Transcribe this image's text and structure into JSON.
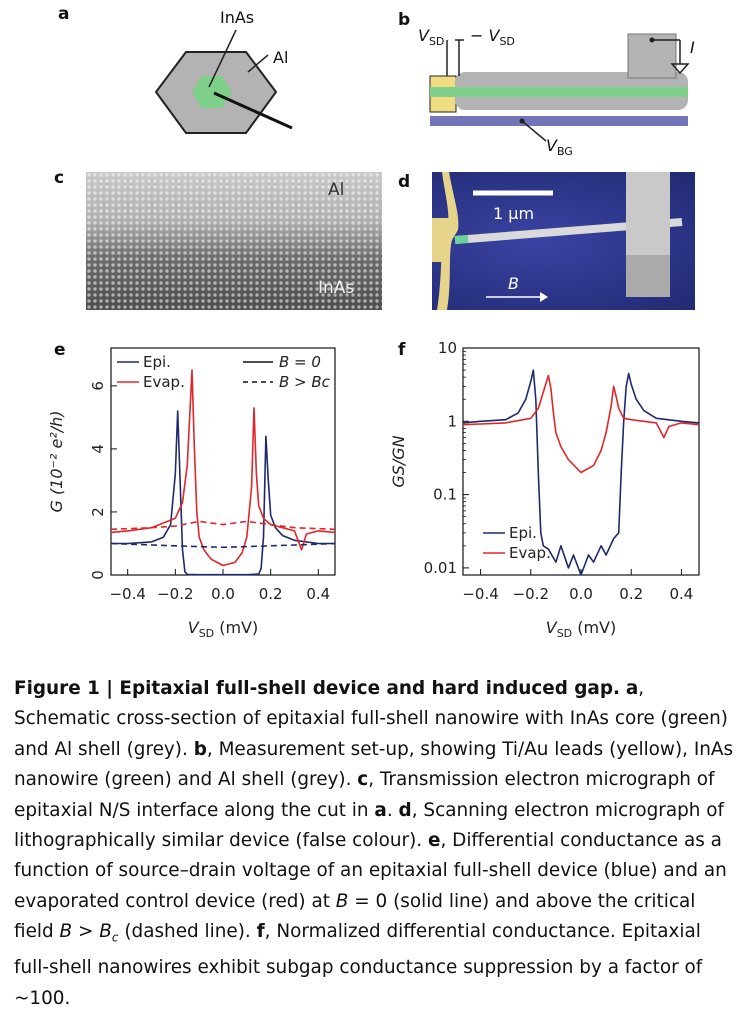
{
  "panels": {
    "a": {
      "letter": "a",
      "label_core": "InAs",
      "label_shell": "Al"
    },
    "b": {
      "letter": "b",
      "vsd_left": "V",
      "vsd_left_sub": "SD",
      "vsd_right": "V",
      "vsd_right_sub": "SD",
      "current": "I",
      "vbg": "V",
      "vbg_sub": "BG"
    },
    "c": {
      "letter": "c",
      "label_top": "Al",
      "label_bottom": "InAs"
    },
    "d": {
      "letter": "d",
      "scale_label": "1 μm",
      "field_label": "B"
    },
    "e": {
      "letter": "e"
    },
    "f": {
      "letter": "f"
    }
  },
  "colors": {
    "epi": "#1f2a6b",
    "evap": "#e0262b",
    "green": "#7ed08a",
    "grey": "#b3b3b3",
    "yellow": "#f0dc82",
    "gate": "#7275b8"
  },
  "chart_data": [
    {
      "id": "e",
      "type": "line",
      "xlabel": "V",
      "xlabel_sub": "SD",
      "xlabel_unit": " (mV)",
      "ylabel": "G (10⁻² e²/h)",
      "xlim": [
        -0.47,
        0.47
      ],
      "ylim": [
        0,
        7.2
      ],
      "xticks": [
        -0.4,
        -0.2,
        0.0,
        0.2,
        0.4
      ],
      "xtick_labels": [
        "−0.4",
        "−0.2",
        "0.0",
        "0.2",
        "0.4"
      ],
      "yticks": [
        0,
        2,
        4,
        6
      ],
      "ytick_labels": [
        "0",
        "2",
        "4",
        "6"
      ],
      "legend_series": [
        "Epi.",
        "Evap."
      ],
      "legend_style": [
        "B = 0",
        "B > Bc"
      ],
      "series": [
        {
          "name": "Epi.",
          "style": "solid",
          "x": [
            -0.47,
            -0.4,
            -0.3,
            -0.25,
            -0.22,
            -0.2,
            -0.19,
            -0.18,
            -0.17,
            -0.16,
            -0.15,
            -0.1,
            0.0,
            0.1,
            0.15,
            0.16,
            0.17,
            0.18,
            0.19,
            0.2,
            0.22,
            0.25,
            0.3,
            0.4,
            0.47
          ],
          "y": [
            1.0,
            1.0,
            1.05,
            1.2,
            1.6,
            3.2,
            5.2,
            3.0,
            0.8,
            0.1,
            0.02,
            0.01,
            0.01,
            0.01,
            0.03,
            0.2,
            1.2,
            4.4,
            3.0,
            1.9,
            1.5,
            1.25,
            1.1,
            1.0,
            1.0
          ]
        },
        {
          "name": "Evap.",
          "style": "solid",
          "x": [
            -0.47,
            -0.4,
            -0.3,
            -0.2,
            -0.17,
            -0.15,
            -0.13,
            -0.12,
            -0.11,
            -0.1,
            -0.08,
            -0.05,
            0.0,
            0.05,
            0.08,
            0.1,
            0.12,
            0.13,
            0.14,
            0.15,
            0.17,
            0.2,
            0.25,
            0.3,
            0.33,
            0.35,
            0.4,
            0.47
          ],
          "y": [
            1.35,
            1.4,
            1.5,
            1.8,
            2.3,
            3.5,
            6.5,
            4.0,
            2.0,
            1.2,
            0.8,
            0.5,
            0.3,
            0.4,
            0.7,
            1.2,
            2.8,
            5.3,
            3.2,
            2.2,
            1.8,
            1.6,
            1.5,
            1.4,
            0.8,
            1.3,
            1.4,
            1.35
          ]
        },
        {
          "name": "Epi.",
          "style": "dashed",
          "x": [
            -0.47,
            -0.3,
            -0.1,
            0.0,
            0.1,
            0.3,
            0.47
          ],
          "y": [
            1.0,
            0.95,
            0.9,
            0.88,
            0.9,
            0.95,
            1.0
          ]
        },
        {
          "name": "Evap.",
          "style": "dashed",
          "x": [
            -0.47,
            -0.3,
            -0.2,
            -0.1,
            0.0,
            0.1,
            0.2,
            0.3,
            0.47
          ],
          "y": [
            1.45,
            1.5,
            1.55,
            1.7,
            1.6,
            1.7,
            1.6,
            1.5,
            1.45
          ]
        }
      ]
    },
    {
      "id": "f",
      "type": "line",
      "log_y": true,
      "xlabel": "V",
      "xlabel_sub": "SD",
      "xlabel_unit": " (mV)",
      "ylabel": "GS/GN",
      "xlim": [
        -0.47,
        0.47
      ],
      "ylim": [
        0.008,
        10
      ],
      "xticks": [
        -0.4,
        -0.2,
        0.0,
        0.2,
        0.4
      ],
      "xtick_labels": [
        "−0.4",
        "−0.2",
        "0.0",
        "0.2",
        "0.4"
      ],
      "yticks": [
        0.01,
        0.1,
        1,
        10
      ],
      "ytick_labels": [
        "0.01",
        "0.1",
        "1",
        "10"
      ],
      "legend_series": [
        "Epi.",
        "Evap."
      ],
      "series": [
        {
          "name": "Epi.",
          "x": [
            -0.47,
            -0.4,
            -0.3,
            -0.25,
            -0.22,
            -0.2,
            -0.19,
            -0.18,
            -0.17,
            -0.16,
            -0.15,
            -0.13,
            -0.1,
            -0.08,
            -0.05,
            -0.03,
            0.0,
            0.03,
            0.05,
            0.08,
            0.1,
            0.13,
            0.15,
            0.16,
            0.17,
            0.18,
            0.19,
            0.2,
            0.22,
            0.25,
            0.3,
            0.4,
            0.47
          ],
          "y": [
            0.95,
            1.0,
            1.05,
            1.3,
            2.0,
            3.5,
            5.0,
            2.0,
            0.2,
            0.03,
            0.02,
            0.018,
            0.012,
            0.02,
            0.01,
            0.015,
            0.008,
            0.015,
            0.012,
            0.02,
            0.015,
            0.025,
            0.03,
            0.2,
            1.0,
            3.0,
            4.5,
            3.2,
            2.0,
            1.4,
            1.1,
            1.0,
            0.95
          ]
        },
        {
          "name": "Evap.",
          "x": [
            -0.47,
            -0.4,
            -0.3,
            -0.2,
            -0.17,
            -0.15,
            -0.13,
            -0.12,
            -0.11,
            -0.1,
            -0.08,
            -0.05,
            0.0,
            0.05,
            0.08,
            0.1,
            0.12,
            0.13,
            0.14,
            0.15,
            0.17,
            0.2,
            0.25,
            0.3,
            0.33,
            0.35,
            0.4,
            0.47
          ],
          "y": [
            0.9,
            0.92,
            0.95,
            1.1,
            1.5,
            2.5,
            4.2,
            2.8,
            1.3,
            0.7,
            0.45,
            0.3,
            0.2,
            0.25,
            0.4,
            0.7,
            1.6,
            3.0,
            2.2,
            1.5,
            1.1,
            1.05,
            1.0,
            0.95,
            0.6,
            0.85,
            0.95,
            0.9
          ]
        }
      ]
    }
  ],
  "caption": {
    "figure_label": "Figure 1 | Epitaxial full-shell device and hard induced gap.",
    "parts": [
      {
        "key": "a",
        "text": "Schematic cross-section of epitaxial full-shell nanowire with InAs core (green) and Al shell (grey)."
      },
      {
        "key": "b",
        "text": "Measurement set-up, showing Ti/Au leads (yellow), InAs nanowire (green) and Al shell (grey)."
      },
      {
        "key": "c",
        "text": "Transmission electron micrograph of epitaxial N/S interface along the cut in"
      },
      {
        "key": "c_ref",
        "text": "a"
      },
      {
        "key": "d",
        "text": "Scanning electron micrograph of lithographically similar device (false colour)."
      },
      {
        "key": "e1",
        "text": "Differential conductance as a function of source–drain voltage of an epitaxial full-shell device (blue) and an evaporated control device (red) at"
      },
      {
        "key": "e2",
        "text": "= 0 (solid line) and above the critical field"
      },
      {
        "key": "e3",
        "text": "(dashed line)."
      },
      {
        "key": "f",
        "text": "Normalized differential conductance. Epitaxial full-shell nanowires exhibit subgap conductance suppression by a factor of ~100."
      }
    ],
    "B": "B",
    "B_gt": "B > B",
    "B_c_sub": "c"
  }
}
